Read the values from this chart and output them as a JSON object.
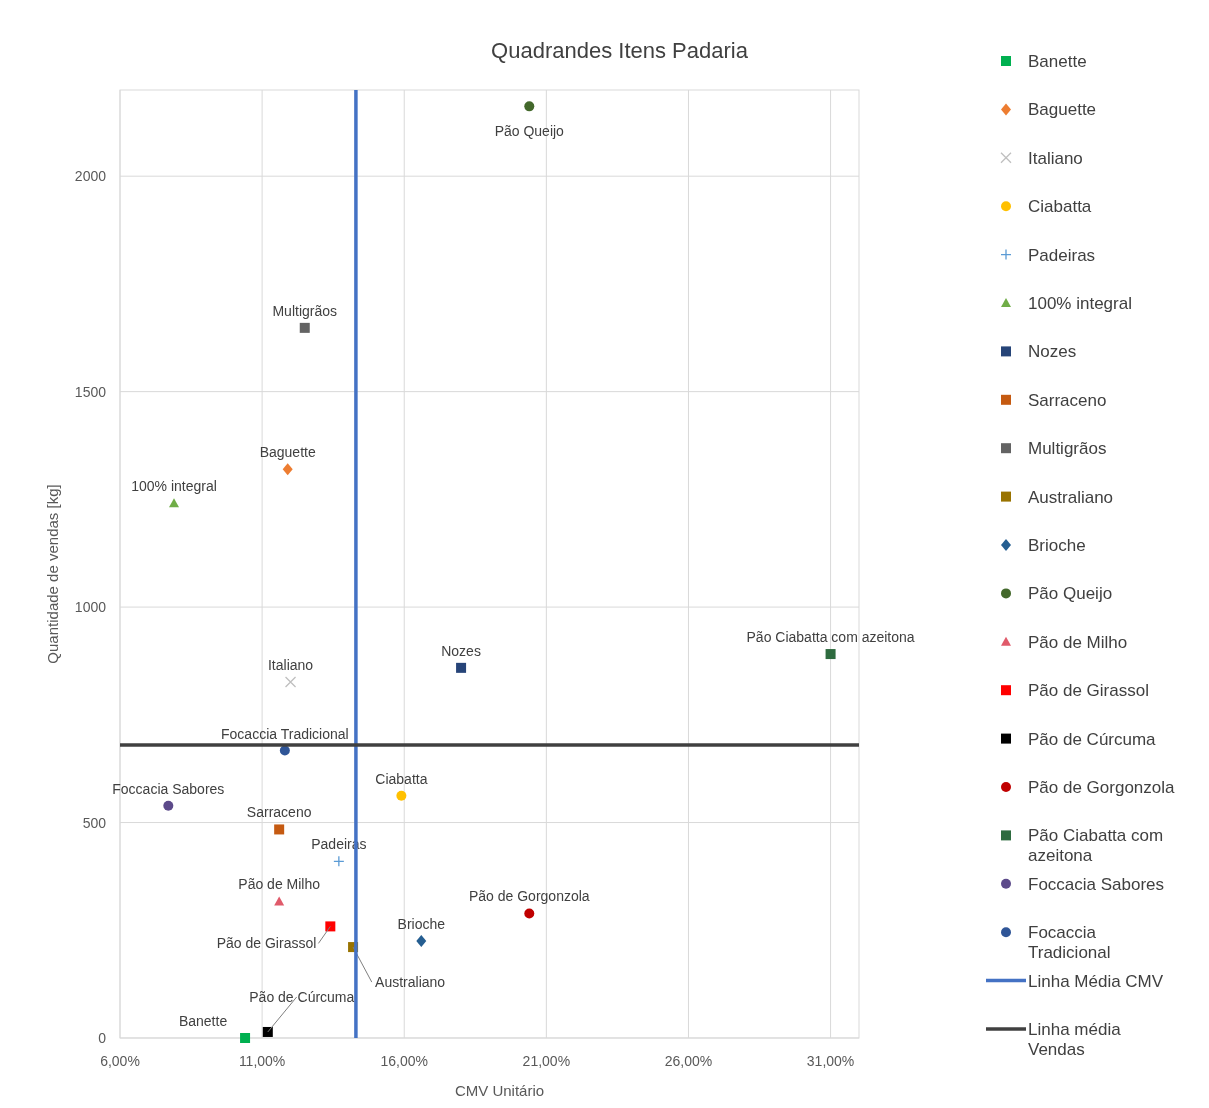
{
  "chart_data": {
    "type": "scatter",
    "title": "Quadrandes Itens Padaria",
    "xlabel": "CMV Unitário",
    "ylabel": "Quantidade de vendas [kg]",
    "xlim": [
      6,
      32
    ],
    "ylim": [
      0,
      2200
    ],
    "xticks": [
      {
        "value": 6,
        "label": "6,00%"
      },
      {
        "value": 11,
        "label": "11,00%"
      },
      {
        "value": 16,
        "label": "16,00%"
      },
      {
        "value": 21,
        "label": "21,00%"
      },
      {
        "value": 26,
        "label": "26,00%"
      },
      {
        "value": 31,
        "label": "31,00%"
      }
    ],
    "yticks": [
      0,
      500,
      1000,
      1500,
      2000
    ],
    "grid": true,
    "legend": "right",
    "series": [
      {
        "name": "Banette",
        "color": "#00b050",
        "marker": "square",
        "x": [
          10.4
        ],
        "values": [
          0
        ]
      },
      {
        "name": "Baguette",
        "color": "#ed7d31",
        "marker": "diamond",
        "x": [
          11.9
        ],
        "values": [
          1320
        ]
      },
      {
        "name": "Italiano",
        "color": "#bfbfbf",
        "marker": "cross",
        "x": [
          12.0
        ],
        "values": [
          826
        ]
      },
      {
        "name": "Ciabatta",
        "color": "#ffc000",
        "marker": "circle",
        "x": [
          15.9
        ],
        "values": [
          562
        ]
      },
      {
        "name": "Padeiras",
        "color": "#5b9bd5",
        "marker": "plus",
        "x": [
          13.7
        ],
        "values": [
          410
        ]
      },
      {
        "name": "100% integral",
        "color": "#70ad47",
        "marker": "triangle",
        "x": [
          7.9
        ],
        "values": [
          1241
        ]
      },
      {
        "name": "Nozes",
        "color": "#264478",
        "marker": "square",
        "x": [
          18.0
        ],
        "values": [
          859
        ]
      },
      {
        "name": "Sarraceno",
        "color": "#c55a11",
        "marker": "square",
        "x": [
          11.6
        ],
        "values": [
          484
        ]
      },
      {
        "name": "Multigrãos",
        "color": "#636363",
        "marker": "square",
        "x": [
          12.5
        ],
        "values": [
          1648
        ]
      },
      {
        "name": "Australiano",
        "color": "#997300",
        "marker": "square",
        "x": [
          14.2
        ],
        "values": [
          211
        ]
      },
      {
        "name": "Brioche",
        "color": "#255e91",
        "marker": "diamond",
        "x": [
          16.6
        ],
        "values": [
          225
        ]
      },
      {
        "name": "Pão Queijo",
        "color": "#43682b",
        "marker": "circle",
        "x": [
          20.4
        ],
        "values": [
          2162
        ]
      },
      {
        "name": "Pão de Milho",
        "color": "#e05a6a",
        "marker": "triangle",
        "x": [
          11.6
        ],
        "values": [
          317
        ]
      },
      {
        "name": "Pão de Girassol",
        "color": "#ff0000",
        "marker": "square",
        "x": [
          13.4
        ],
        "values": [
          259
        ]
      },
      {
        "name": "Pão de Cúrcuma",
        "color": "#000000",
        "marker": "square",
        "x": [
          11.2
        ],
        "values": [
          14
        ]
      },
      {
        "name": "Pão de Gorgonzola",
        "color": "#c00000",
        "marker": "circle",
        "x": [
          20.4
        ],
        "values": [
          289
        ]
      },
      {
        "name": "Pão Ciabatta com azeitona",
        "color": "#2e6b3f",
        "marker": "square",
        "x": [
          31.0
        ],
        "values": [
          891
        ]
      },
      {
        "name": "Foccacia Sabores",
        "color": "#5c4a8a",
        "marker": "circle",
        "x": [
          7.7
        ],
        "values": [
          539
        ]
      },
      {
        "name": "Focaccia Tradicional",
        "color": "#2f5597",
        "marker": "circle",
        "x": [
          11.8
        ],
        "values": [
          667
        ]
      },
      {
        "name": "Linha Média CMV",
        "type": "line",
        "color": "#4472c4",
        "marker": "none",
        "x": [
          14.3,
          14.3
        ],
        "values": [
          0,
          2200
        ]
      },
      {
        "name": "Linha média Vendas",
        "type": "line",
        "color": "#404040",
        "marker": "none",
        "x": [
          6,
          32
        ],
        "values": [
          680,
          680
        ]
      }
    ]
  }
}
